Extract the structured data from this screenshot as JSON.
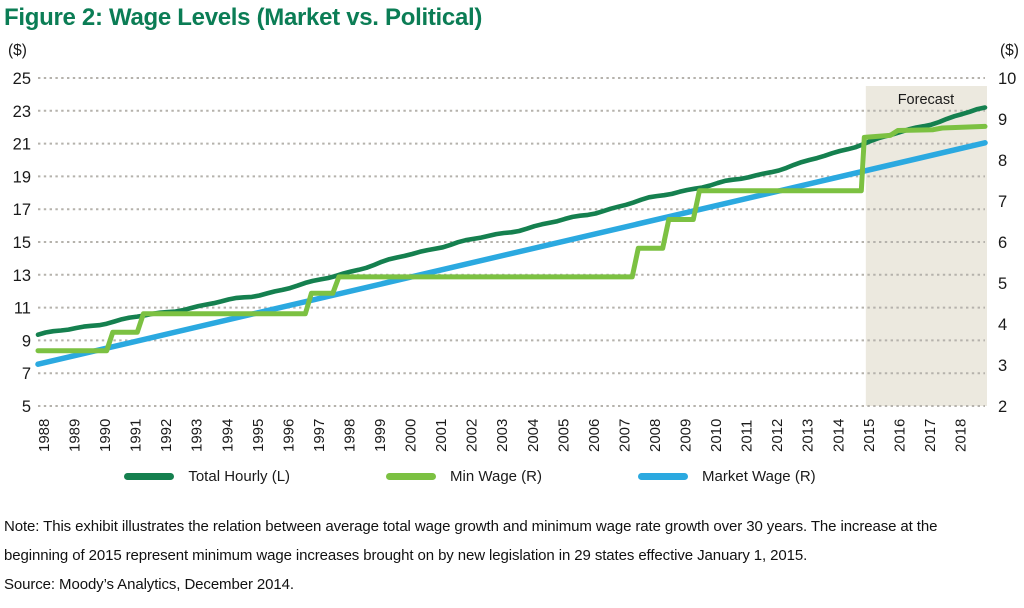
{
  "title": "Figure 2: Wage Levels (Market vs. Political)",
  "colors": {
    "title_green": "#0b7d55",
    "total_hourly": "#15804f",
    "min_wage": "#7cc142",
    "market_wage": "#2ba9e0",
    "gridline": "#b5b2ac",
    "forecast_band": "#ece9df",
    "text": "#1a1a1a"
  },
  "axes": {
    "left_unit": "($)",
    "right_unit": "($)",
    "left_ticks": [
      25,
      23,
      21,
      19,
      17,
      15,
      13,
      11,
      9,
      7,
      5
    ],
    "right_ticks": [
      10,
      9,
      8,
      7,
      6,
      5,
      4,
      3,
      2
    ],
    "years": [
      1988,
      1989,
      1990,
      1991,
      1992,
      1993,
      1994,
      1995,
      1996,
      1997,
      1998,
      1999,
      2000,
      2001,
      2002,
      2003,
      2004,
      2005,
      2006,
      2007,
      2008,
      2009,
      2010,
      2011,
      2012,
      2013,
      2014,
      2015,
      2016,
      2017,
      2018
    ]
  },
  "legend": [
    {
      "label": "Total Hourly (L)",
      "color": "#15804f"
    },
    {
      "label": "Min Wage (R)",
      "color": "#7cc142"
    },
    {
      "label": "Market Wage (R)",
      "color": "#2ba9e0"
    }
  ],
  "chart_data": {
    "type": "line",
    "title": "Figure 2: Wage Levels (Market vs. Political)",
    "x_range": [
      1988,
      2019
    ],
    "left_axis": {
      "unit": "($)",
      "range": [
        5,
        25
      ],
      "ticks": [
        25,
        23,
        21,
        19,
        17,
        15,
        13,
        11,
        9,
        7,
        5
      ]
    },
    "right_axis": {
      "unit": "($)",
      "range": [
        2,
        10
      ],
      "ticks": [
        10,
        9,
        8,
        7,
        6,
        5,
        4,
        3,
        2
      ]
    },
    "grid": "dotted horizontal",
    "legend_position": "bottom",
    "forecast_band": {
      "label": "Forecast",
      "from": 2015,
      "to": 2019
    },
    "series": [
      {
        "name": "Total Hourly (L)",
        "axis": "left",
        "color": "#15804f",
        "x_start": 1988,
        "x_step": 1,
        "values": [
          9.35,
          9.65,
          10.0,
          10.35,
          10.65,
          11.0,
          11.35,
          11.7,
          12.1,
          12.55,
          13.1,
          13.6,
          14.15,
          14.65,
          15.05,
          15.45,
          15.85,
          16.25,
          16.7,
          17.15,
          17.65,
          18.1,
          18.45,
          18.85,
          19.3,
          19.8,
          20.4,
          21.0,
          21.55,
          22.1,
          22.65,
          23.2
        ]
      },
      {
        "name": "Min Wage (R)",
        "axis": "right",
        "color": "#7cc142",
        "points": [
          [
            1988,
            3.35
          ],
          [
            1990.25,
            3.35
          ],
          [
            1990.45,
            3.8
          ],
          [
            1991.25,
            3.8
          ],
          [
            1991.45,
            4.25
          ],
          [
            1996.75,
            4.25
          ],
          [
            1996.95,
            4.75
          ],
          [
            1997.65,
            4.75
          ],
          [
            1997.85,
            5.15
          ],
          [
            2007.45,
            5.15
          ],
          [
            2007.65,
            5.85
          ],
          [
            2008.45,
            5.85
          ],
          [
            2008.65,
            6.55
          ],
          [
            2009.45,
            6.55
          ],
          [
            2009.65,
            7.25
          ],
          [
            2014.95,
            7.25
          ],
          [
            2015.05,
            8.55
          ],
          [
            2015.9,
            8.6
          ],
          [
            2016.15,
            8.72
          ],
          [
            2017.3,
            8.74
          ],
          [
            2017.6,
            8.78
          ],
          [
            2019,
            8.82
          ]
        ]
      },
      {
        "name": "Market Wage (R)",
        "axis": "right",
        "color": "#2ba9e0",
        "points": [
          [
            1988,
            3.02
          ],
          [
            2019,
            8.42
          ]
        ]
      }
    ]
  },
  "note_lines": [
    "Note:  This exhibit illustrates the relation between average total wage growth and minimum wage rate growth over 30 years.  The increase at the",
    "beginning of 2015 represent minimum wage increases brought on by new legislation in 29 states effective January 1, 2015.",
    "Source: Moody’s Analytics, December 2014."
  ]
}
